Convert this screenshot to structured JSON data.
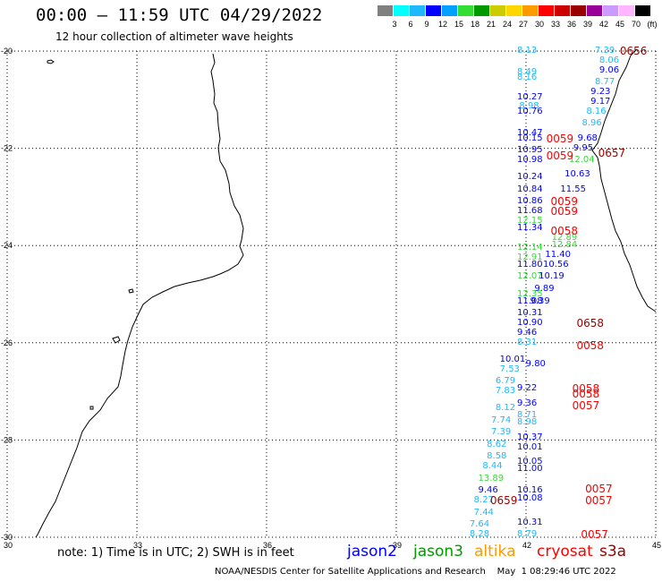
{
  "title": "00:00 – 11:59 UTC 04/29/2022",
  "subtitle": "12 hour collection of altimeter wave heights",
  "scale": {
    "colors": [
      "#808080",
      "#00ffff",
      "#1fb8ff",
      "#0000ff",
      "#00a0ff",
      "#33dd33",
      "#009900",
      "#cccc00",
      "#ffd700",
      "#ff9900",
      "#ff0000",
      "#cc0000",
      "#990000",
      "#990099",
      "#cc99ff",
      "#ffb6ff",
      "#000000"
    ],
    "labels": [
      "3",
      "6",
      "9",
      "12",
      "15",
      "18",
      "21",
      "24",
      "27",
      "30",
      "33",
      "36",
      "39",
      "42",
      "45",
      "70",
      "(ft)"
    ]
  },
  "axes": {
    "lat_labels": [
      "-20",
      "-22",
      "-24",
      "-26",
      "-28",
      "-30"
    ],
    "lon_labels": [
      "30",
      "33",
      "36",
      "39",
      "42",
      "45"
    ]
  },
  "map": {
    "lon_min": 30,
    "lon_max": 45,
    "lat_min": -30,
    "lat_max": -20
  },
  "wave_heights": [
    {
      "v": "8.13",
      "lon": 42.0,
      "lat": -20.0,
      "c": "#1fb8ff"
    },
    {
      "v": "7.39",
      "lon": 43.8,
      "lat": -20.0,
      "c": "#1fb8ff"
    },
    {
      "v": "8.06",
      "lon": 43.9,
      "lat": -20.2,
      "c": "#1fb8ff"
    },
    {
      "v": "9.06",
      "lon": 43.9,
      "lat": -20.4,
      "c": "#0000ff"
    },
    {
      "v": "8.49",
      "lon": 42.0,
      "lat": -20.45,
      "c": "#1fb8ff"
    },
    {
      "v": "8.16",
      "lon": 42.0,
      "lat": -20.55,
      "c": "#1fb8ff"
    },
    {
      "v": "8.77",
      "lon": 43.8,
      "lat": -20.65,
      "c": "#1fb8ff"
    },
    {
      "v": "9.23",
      "lon": 43.7,
      "lat": -20.85,
      "c": "#0000ff"
    },
    {
      "v": "10.27",
      "lon": 42.0,
      "lat": -20.95,
      "c": "#0000ff"
    },
    {
      "v": "9.17",
      "lon": 43.7,
      "lat": -21.05,
      "c": "#0000ff"
    },
    {
      "v": "8.98",
      "lon": 42.05,
      "lat": -21.15,
      "c": "#1fb8ff"
    },
    {
      "v": "10.76",
      "lon": 42.0,
      "lat": -21.25,
      "c": "#0000ff"
    },
    {
      "v": "8.16",
      "lon": 43.6,
      "lat": -21.25,
      "c": "#1fb8ff"
    },
    {
      "v": "8.96",
      "lon": 43.5,
      "lat": -21.5,
      "c": "#1fb8ff"
    },
    {
      "v": "10.47",
      "lon": 42.0,
      "lat": -21.7,
      "c": "#0000ff"
    },
    {
      "v": "10.15",
      "lon": 42.0,
      "lat": -21.8,
      "c": "#0000ff"
    },
    {
      "v": "9.68",
      "lon": 43.4,
      "lat": -21.8,
      "c": "#0000ff"
    },
    {
      "v": "10.95",
      "lon": 42.0,
      "lat": -22.05,
      "c": "#0000ff"
    },
    {
      "v": "9.95",
      "lon": 43.3,
      "lat": -22.0,
      "c": "#0000ff"
    },
    {
      "v": "10.98",
      "lon": 42.0,
      "lat": -22.25,
      "c": "#0000ff"
    },
    {
      "v": "12.04",
      "lon": 43.2,
      "lat": -22.25,
      "c": "#33dd33"
    },
    {
      "v": "10.63",
      "lon": 43.1,
      "lat": -22.55,
      "c": "#0000ff"
    },
    {
      "v": "10.24",
      "lon": 42.0,
      "lat": -22.6,
      "c": "#0000ff"
    },
    {
      "v": "11.55",
      "lon": 43.0,
      "lat": -22.85,
      "c": "#0000ff"
    },
    {
      "v": "10.84",
      "lon": 42.0,
      "lat": -22.85,
      "c": "#0000ff"
    },
    {
      "v": "10.86",
      "lon": 42.0,
      "lat": -23.1,
      "c": "#0000ff"
    },
    {
      "v": "11.68",
      "lon": 42.0,
      "lat": -23.3,
      "c": "#0000ff"
    },
    {
      "v": "12.15",
      "lon": 42.0,
      "lat": -23.5,
      "c": "#33dd33"
    },
    {
      "v": "11.34",
      "lon": 42.0,
      "lat": -23.65,
      "c": "#0000ff"
    },
    {
      "v": "12.89",
      "lon": 42.8,
      "lat": -23.85,
      "c": "#33dd33"
    },
    {
      "v": "12.84",
      "lon": 42.8,
      "lat": -24.0,
      "c": "#33dd33"
    },
    {
      "v": "12.14",
      "lon": 42.0,
      "lat": -24.05,
      "c": "#33dd33"
    },
    {
      "v": "11.40",
      "lon": 42.65,
      "lat": -24.2,
      "c": "#0000ff"
    },
    {
      "v": "12.91",
      "lon": 42.0,
      "lat": -24.25,
      "c": "#33dd33"
    },
    {
      "v": "11.80",
      "lon": 42.0,
      "lat": -24.4,
      "c": "#0000ff"
    },
    {
      "v": "10.56",
      "lon": 42.6,
      "lat": -24.4,
      "c": "#0000ff"
    },
    {
      "v": "12.07",
      "lon": 42.0,
      "lat": -24.65,
      "c": "#33dd33"
    },
    {
      "v": "10.19",
      "lon": 42.5,
      "lat": -24.65,
      "c": "#0000ff"
    },
    {
      "v": "9.89",
      "lon": 42.4,
      "lat": -24.9,
      "c": "#0000ff"
    },
    {
      "v": "12.35",
      "lon": 42.0,
      "lat": -25.0,
      "c": "#33dd33"
    },
    {
      "v": "11.08",
      "lon": 42.0,
      "lat": -25.15,
      "c": "#0000ff"
    },
    {
      "v": "9.39",
      "lon": 42.3,
      "lat": -25.15,
      "c": "#0000ff"
    },
    {
      "v": "10.31",
      "lon": 42.0,
      "lat": -25.4,
      "c": "#0000ff"
    },
    {
      "v": "10.90",
      "lon": 42.0,
      "lat": -25.6,
      "c": "#0000ff"
    },
    {
      "v": "9.46",
      "lon": 42.0,
      "lat": -25.8,
      "c": "#0000ff"
    },
    {
      "v": "8.31",
      "lon": 42.0,
      "lat": -26.0,
      "c": "#1fb8ff"
    },
    {
      "v": "10.01",
      "lon": 41.6,
      "lat": -26.35,
      "c": "#0000ff"
    },
    {
      "v": "9.80",
      "lon": 42.2,
      "lat": -26.45,
      "c": "#0000ff"
    },
    {
      "v": "7.53",
      "lon": 41.6,
      "lat": -26.55,
      "c": "#1fb8ff"
    },
    {
      "v": "6.79",
      "lon": 41.5,
      "lat": -26.8,
      "c": "#1fb8ff"
    },
    {
      "v": "9.22",
      "lon": 42.0,
      "lat": -26.95,
      "c": "#0000ff"
    },
    {
      "v": "7.83",
      "lon": 41.5,
      "lat": -27.0,
      "c": "#1fb8ff"
    },
    {
      "v": "9.36",
      "lon": 42.0,
      "lat": -27.25,
      "c": "#0000ff"
    },
    {
      "v": "8.12",
      "lon": 41.5,
      "lat": -27.35,
      "c": "#1fb8ff"
    },
    {
      "v": "8.71",
      "lon": 42.0,
      "lat": -27.5,
      "c": "#1fb8ff"
    },
    {
      "v": "7.74",
      "lon": 41.4,
      "lat": -27.6,
      "c": "#1fb8ff"
    },
    {
      "v": "8.98",
      "lon": 42.0,
      "lat": -27.65,
      "c": "#1fb8ff"
    },
    {
      "v": "7.39",
      "lon": 41.4,
      "lat": -27.85,
      "c": "#1fb8ff"
    },
    {
      "v": "10.37",
      "lon": 42.0,
      "lat": -27.95,
      "c": "#0000ff"
    },
    {
      "v": "8.62",
      "lon": 41.3,
      "lat": -28.1,
      "c": "#1fb8ff"
    },
    {
      "v": "10.01",
      "lon": 42.0,
      "lat": -28.15,
      "c": "#0000ff"
    },
    {
      "v": "8.58",
      "lon": 41.3,
      "lat": -28.35,
      "c": "#1fb8ff"
    },
    {
      "v": "10.05",
      "lon": 42.0,
      "lat": -28.45,
      "c": "#0000ff"
    },
    {
      "v": "8.44",
      "lon": 41.2,
      "lat": -28.55,
      "c": "#1fb8ff"
    },
    {
      "v": "11.00",
      "lon": 42.0,
      "lat": -28.6,
      "c": "#0000ff"
    },
    {
      "v": "13.89",
      "lon": 41.1,
      "lat": -28.8,
      "c": "#33dd33"
    },
    {
      "v": "9.46",
      "lon": 41.1,
      "lat": -29.05,
      "c": "#0000ff"
    },
    {
      "v": "10.16",
      "lon": 42.0,
      "lat": -29.05,
      "c": "#0000ff"
    },
    {
      "v": "10.08",
      "lon": 42.0,
      "lat": -29.2,
      "c": "#0000ff"
    },
    {
      "v": "8.27",
      "lon": 41.0,
      "lat": -29.25,
      "c": "#1fb8ff"
    },
    {
      "v": "7.44",
      "lon": 41.0,
      "lat": -29.5,
      "c": "#1fb8ff"
    },
    {
      "v": "10.31",
      "lon": 42.0,
      "lat": -29.7,
      "c": "#0000ff"
    },
    {
      "v": "7.64",
      "lon": 40.9,
      "lat": -29.75,
      "c": "#1fb8ff"
    },
    {
      "v": "8.28",
      "lon": 40.9,
      "lat": -29.95,
      "c": "#1fb8ff"
    },
    {
      "v": "8.79",
      "lon": 42.0,
      "lat": -29.95,
      "c": "#1fb8ff"
    }
  ],
  "passes": [
    {
      "t": "0656",
      "lon": 44.5,
      "lat": -20.0,
      "c": "#990000"
    },
    {
      "t": "0059",
      "lon": 42.8,
      "lat": -21.8,
      "c": "#ff0000"
    },
    {
      "t": "0059",
      "lon": 42.8,
      "lat": -22.15,
      "c": "#ff0000"
    },
    {
      "t": "0657",
      "lon": 44.0,
      "lat": -22.1,
      "c": "#990000"
    },
    {
      "t": "0059",
      "lon": 42.9,
      "lat": -23.1,
      "c": "#ff0000"
    },
    {
      "t": "0059",
      "lon": 42.9,
      "lat": -23.3,
      "c": "#ff0000"
    },
    {
      "t": "0058",
      "lon": 42.9,
      "lat": -23.7,
      "c": "#ff0000"
    },
    {
      "t": "0658",
      "lon": 43.5,
      "lat": -25.6,
      "c": "#990000"
    },
    {
      "t": "0058",
      "lon": 43.5,
      "lat": -26.05,
      "c": "#ff0000"
    },
    {
      "t": "0058",
      "lon": 43.4,
      "lat": -26.95,
      "c": "#ff0000"
    },
    {
      "t": "0058",
      "lon": 43.4,
      "lat": -27.05,
      "c": "#ff0000"
    },
    {
      "t": "0057",
      "lon": 43.4,
      "lat": -27.3,
      "c": "#ff0000"
    },
    {
      "t": "0057",
      "lon": 43.7,
      "lat": -29.0,
      "c": "#ff0000"
    },
    {
      "t": "0659",
      "lon": 41.5,
      "lat": -29.25,
      "c": "#990000"
    },
    {
      "t": "0057",
      "lon": 43.7,
      "lat": -29.25,
      "c": "#ff0000"
    },
    {
      "t": "0057",
      "lon": 43.6,
      "lat": -29.95,
      "c": "#ff0000"
    }
  ],
  "note": "note: 1) Time is in UTC; 2) SWH is in feet",
  "legend": [
    {
      "name": "jason2",
      "color": "#0000ff"
    },
    {
      "name": "jason3",
      "color": "#009900"
    },
    {
      "name": "altika",
      "color": "#ff9900"
    },
    {
      "name": "cryosat",
      "color": "#ff0000"
    },
    {
      "name": "s3a",
      "color": "#990000"
    }
  ],
  "footer": "NOAA/NESDIS Center for Satellite Applications and Research    May  1 08:29:46 UTC 2022"
}
